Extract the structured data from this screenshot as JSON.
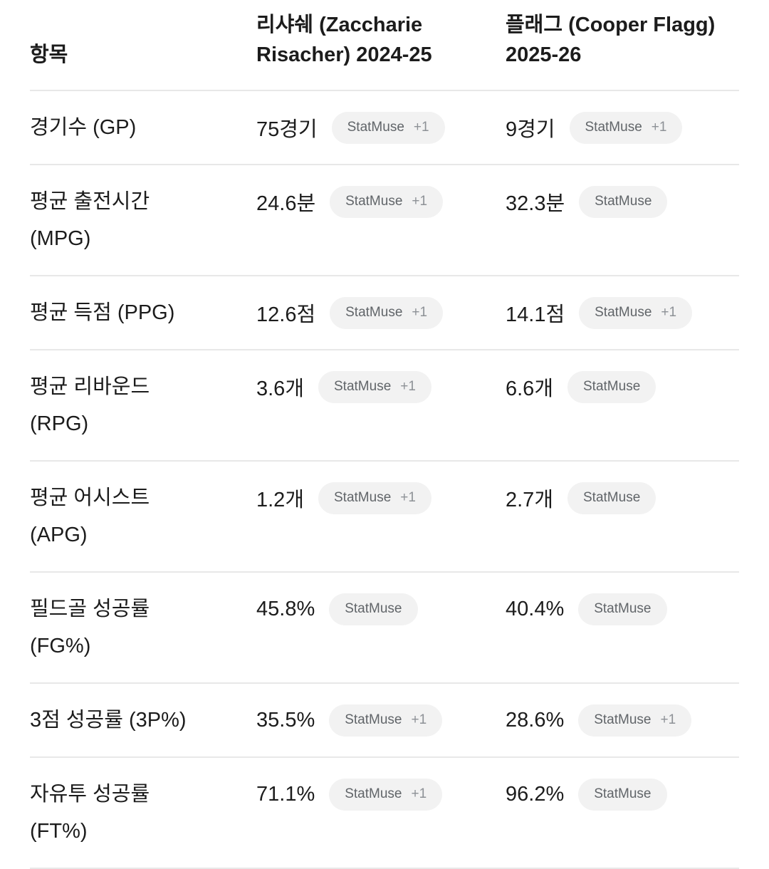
{
  "colors": {
    "background": "#ffffff",
    "text": "#1c1c1c",
    "divider": "#e8e8e8",
    "badge_background": "#f2f2f2",
    "badge_text": "#616569",
    "badge_extra_text": "#8d9196"
  },
  "table": {
    "columns": {
      "item": "항목",
      "risacher": "리샤쉐 (Zaccharie\nRisacher) 2024-25",
      "flagg": "플래그 (Cooper Flagg)\n2025-26"
    },
    "rows": [
      {
        "item": "경기수 (GP)",
        "risacher": {
          "value": "75경기",
          "source": "StatMuse",
          "extra": "+1"
        },
        "flagg": {
          "value": "9경기",
          "source": "StatMuse",
          "extra": "+1"
        }
      },
      {
        "item": "평균 출전시간\n(MPG)",
        "risacher": {
          "value": "24.6분",
          "source": "StatMuse",
          "extra": "+1"
        },
        "flagg": {
          "value": "32.3분",
          "source": "StatMuse",
          "extra": ""
        }
      },
      {
        "item": "평균 득점 (PPG)",
        "risacher": {
          "value": "12.6점",
          "source": "StatMuse",
          "extra": "+1"
        },
        "flagg": {
          "value": "14.1점",
          "source": "StatMuse",
          "extra": "+1"
        }
      },
      {
        "item": "평균 리바운드\n(RPG)",
        "risacher": {
          "value": "3.6개",
          "source": "StatMuse",
          "extra": "+1"
        },
        "flagg": {
          "value": "6.6개",
          "source": "StatMuse",
          "extra": ""
        }
      },
      {
        "item": "평균 어시스트\n(APG)",
        "risacher": {
          "value": "1.2개",
          "source": "StatMuse",
          "extra": "+1"
        },
        "flagg": {
          "value": "2.7개",
          "source": "StatMuse",
          "extra": ""
        }
      },
      {
        "item": "필드골 성공률\n(FG%)",
        "risacher": {
          "value": "45.8%",
          "source": "StatMuse",
          "extra": ""
        },
        "flagg": {
          "value": "40.4%",
          "source": "StatMuse",
          "extra": ""
        }
      },
      {
        "item": "3점 성공률 (3P%)",
        "risacher": {
          "value": "35.5%",
          "source": "StatMuse",
          "extra": "+1"
        },
        "flagg": {
          "value": "28.6%",
          "source": "StatMuse",
          "extra": "+1"
        }
      },
      {
        "item": "자유투 성공률\n(FT%)",
        "risacher": {
          "value": "71.1%",
          "source": "StatMuse",
          "extra": "+1"
        },
        "flagg": {
          "value": "96.2%",
          "source": "StatMuse",
          "extra": ""
        }
      }
    ]
  }
}
